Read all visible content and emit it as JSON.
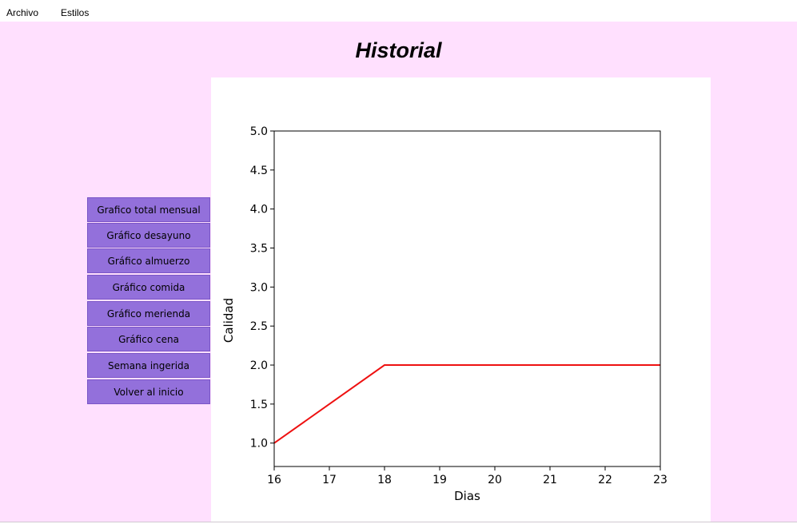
{
  "menu": {
    "items": [
      "Archivo",
      "Estilos"
    ]
  },
  "page": {
    "title": "Historial"
  },
  "buttons": [
    "Grafico total mensual",
    "Gráfico desayuno",
    "Gráfico almuerzo",
    "Gráfico comida",
    "Gráfico merienda",
    "Gráfico cena",
    "Semana ingerida",
    "Volver al inicio"
  ],
  "colors": {
    "background": "#ffe0fe",
    "button": "#9370db",
    "line": "#ee1111"
  },
  "chart_data": {
    "type": "line",
    "title": "",
    "xlabel": "Dias",
    "ylabel": "Calidad",
    "x": [
      16,
      18,
      23
    ],
    "series": [
      {
        "values": [
          1.0,
          2.0,
          2.0
        ]
      }
    ],
    "xlim": [
      16,
      23
    ],
    "ylim": [
      0.7,
      5.0
    ],
    "xticks": [
      16,
      17,
      18,
      19,
      20,
      21,
      22,
      23
    ],
    "yticks": [
      1.0,
      1.5,
      2.0,
      2.5,
      3.0,
      3.5,
      4.0,
      4.5,
      5.0
    ],
    "ytick_labels": [
      "1.0",
      "1.5",
      "2.0",
      "2.5",
      "3.0",
      "3.5",
      "4.0",
      "4.5",
      "5.0"
    ],
    "grid": false,
    "legend": "none"
  }
}
